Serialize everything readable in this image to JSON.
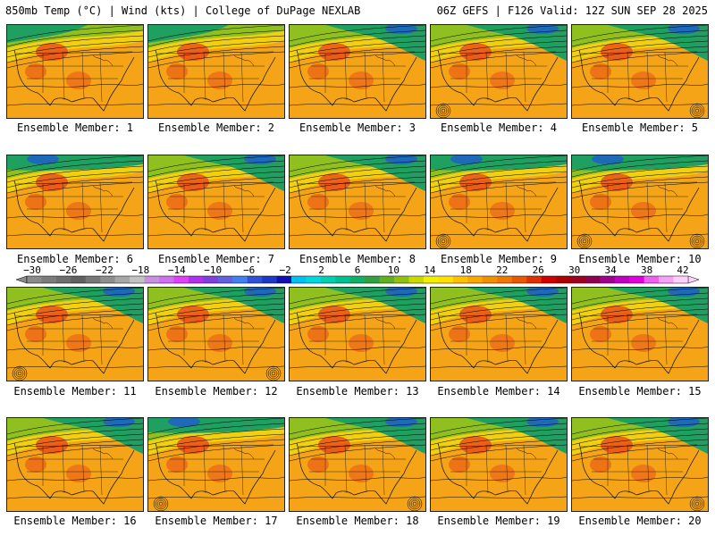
{
  "header": {
    "left": "850mb Temp (°C) | Wind (kts) | College of DuPage NEXLAB",
    "right": "06Z GEFS | F126 Valid: 12Z SUN SEP 28 2025"
  },
  "members": [
    {
      "label": "Ensemble Member: 1",
      "cold": "nw",
      "lows": []
    },
    {
      "label": "Ensemble Member: 2",
      "cold": "nw",
      "lows": []
    },
    {
      "label": "Ensemble Member: 3",
      "cold": "ne",
      "lows": []
    },
    {
      "label": "Ensemble Member: 4",
      "cold": "ne",
      "lows": [
        "sw"
      ]
    },
    {
      "label": "Ensemble Member: 5",
      "cold": "ne",
      "lows": [
        "se"
      ]
    },
    {
      "label": "Ensemble Member: 6",
      "cold": "n",
      "lows": []
    },
    {
      "label": "Ensemble Member: 7",
      "cold": "ne",
      "lows": []
    },
    {
      "label": "Ensemble Member: 8",
      "cold": "ne",
      "lows": []
    },
    {
      "label": "Ensemble Member: 9",
      "cold": "n",
      "lows": [
        "sw"
      ]
    },
    {
      "label": "Ensemble Member: 10",
      "cold": "n",
      "lows": [
        "sw",
        "se"
      ]
    },
    {
      "label": "Ensemble Member: 11",
      "cold": "ne",
      "lows": [
        "sw"
      ]
    },
    {
      "label": "Ensemble Member: 12",
      "cold": "ne",
      "lows": [
        "se"
      ]
    },
    {
      "label": "Ensemble Member: 13",
      "cold": "ne",
      "lows": []
    },
    {
      "label": "Ensemble Member: 14",
      "cold": "ne",
      "lows": []
    },
    {
      "label": "Ensemble Member: 15",
      "cold": "ne",
      "lows": []
    },
    {
      "label": "Ensemble Member: 16",
      "cold": "ne",
      "lows": []
    },
    {
      "label": "Ensemble Member: 17",
      "cold": "n",
      "lows": [
        "sw"
      ]
    },
    {
      "label": "Ensemble Member: 18",
      "cold": "ne",
      "lows": [
        "se"
      ]
    },
    {
      "label": "Ensemble Member: 19",
      "cold": "ne",
      "lows": []
    },
    {
      "label": "Ensemble Member: 20",
      "cold": "ne",
      "lows": [
        "se"
      ]
    }
  ],
  "colorbar": {
    "ticks": [
      "−30",
      "−26",
      "−22",
      "−18",
      "−14",
      "−10",
      "−6",
      "−2",
      "2",
      "6",
      "10",
      "14",
      "18",
      "22",
      "26",
      "30",
      "34",
      "38",
      "42"
    ],
    "colors": [
      "#8a8a8a",
      "#7c7c7c",
      "#6e6e6e",
      "#616161",
      "#777777",
      "#8e8e8e",
      "#a6a6a6",
      "#c2c2c2",
      "#c890e0",
      "#d070f0",
      "#e040f8",
      "#b030f0",
      "#8040e0",
      "#6060e0",
      "#4080f0",
      "#3050d8",
      "#2038c8",
      "#1010b0",
      "#00c0f0",
      "#00d8e0",
      "#00d0b0",
      "#00c090",
      "#10b068",
      "#30a040",
      "#60b020",
      "#90c010",
      "#c8d800",
      "#f0f000",
      "#ffe000",
      "#ffc000",
      "#f8a800",
      "#f09000",
      "#f07800",
      "#e85800",
      "#e03000",
      "#d00000",
      "#b00000",
      "#a00020",
      "#900050",
      "#a00090",
      "#c000c0",
      "#e000e0",
      "#f060f0",
      "#f8a0f8",
      "#ffd0ff"
    ]
  },
  "palette": {
    "cold": "#20a060",
    "cool": "#90c020",
    "mild": "#f0d010",
    "warm": "#f4a416",
    "hot": "#e84a18",
    "blue": "#2060c8"
  }
}
